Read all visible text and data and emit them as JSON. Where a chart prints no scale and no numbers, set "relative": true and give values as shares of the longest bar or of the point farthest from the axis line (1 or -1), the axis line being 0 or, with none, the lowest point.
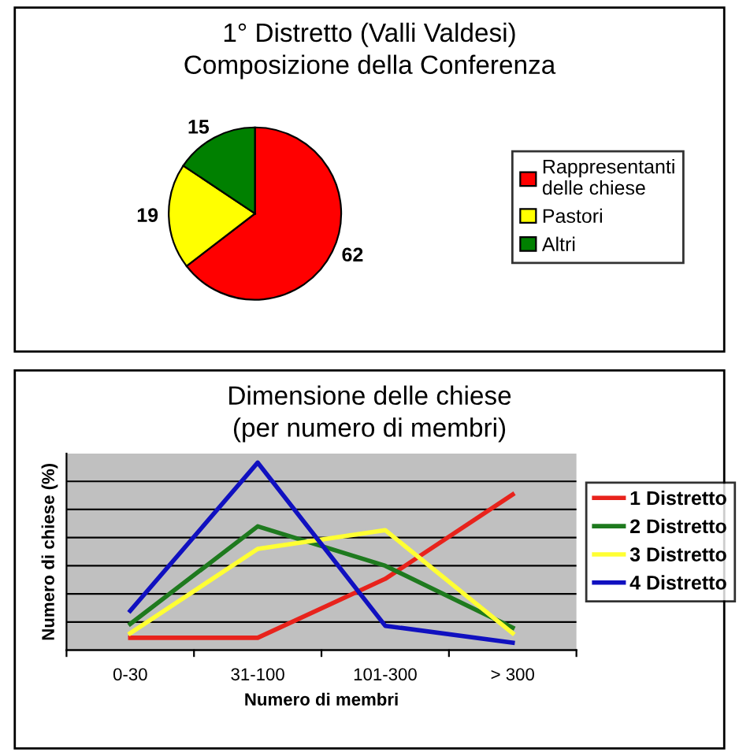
{
  "chart_data": [
    {
      "type": "pie",
      "title": "1° Distretto (Valli Valdesi)\nComposizione della Conferenza",
      "categories": [
        "Rappresentanti\ndelle chiese",
        "Pastori",
        "Altri"
      ],
      "values": [
        62,
        19,
        15
      ],
      "colors": [
        "#ff0000",
        "#ffff00",
        "#008000"
      ],
      "data_labels": true,
      "legend": "right"
    },
    {
      "type": "line",
      "title": "Dimensione delle chiese\n(per numero di membri)",
      "xlabel": "Numero di membri",
      "ylabel": "Numero di chiese (%)",
      "categories": [
        "0-30",
        "31-100",
        "101-300",
        "> 300"
      ],
      "relative": true,
      "grid": "y",
      "legend": "right",
      "marker": "none",
      "line_style": "solid",
      "series": [
        {
          "name": "1 Distretto",
          "color": "#e8231c",
          "values": [
            0.066,
            0.066,
            0.38,
            0.83
          ]
        },
        {
          "name": "2 Distretto",
          "color": "#1e7a1e",
          "values": [
            0.14,
            0.66,
            0.45,
            0.12
          ]
        },
        {
          "name": "3 Distretto",
          "color": "#ffff33",
          "values": [
            0.09,
            0.54,
            0.64,
            0.09
          ]
        },
        {
          "name": "4 Distretto",
          "color": "#1010c0",
          "values": [
            0.21,
            1.0,
            0.13,
            0.04
          ]
        }
      ]
    }
  ]
}
